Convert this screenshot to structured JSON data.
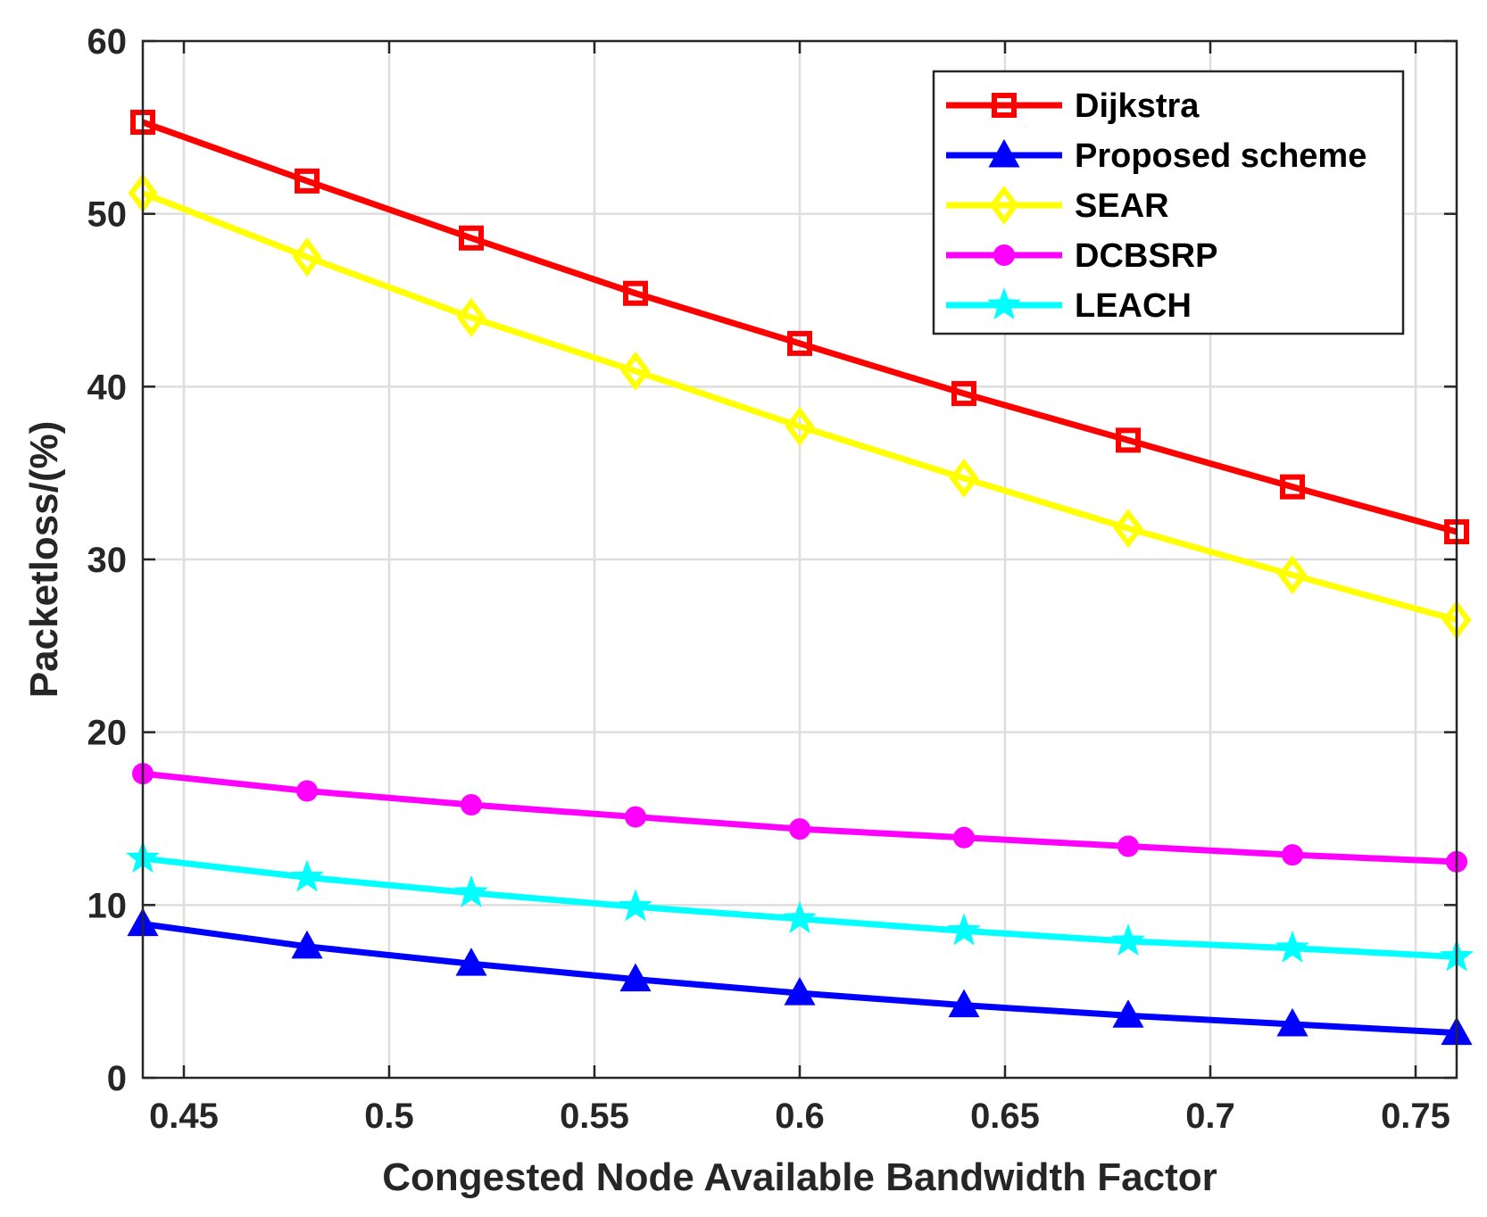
{
  "chart_data": {
    "type": "line",
    "title": "",
    "xlabel": "Congested Node Available Bandwidth Factor",
    "ylabel": "Packetloss/(%)",
    "xlim": [
      0.44,
      0.76
    ],
    "ylim": [
      0,
      60
    ],
    "xticks": [
      0.45,
      0.5,
      0.55,
      0.6,
      0.65,
      0.7,
      0.75
    ],
    "xtick_labels": [
      "0.45",
      "0.5",
      "0.55",
      "0.6",
      "0.65",
      "0.7",
      "0.75"
    ],
    "yticks": [
      0,
      10,
      20,
      30,
      40,
      50,
      60
    ],
    "ytick_labels": [
      "0",
      "10",
      "20",
      "30",
      "40",
      "50",
      "60"
    ],
    "grid": true,
    "legend_position": "top-right",
    "x": [
      0.44,
      0.48,
      0.52,
      0.56,
      0.6,
      0.64,
      0.68,
      0.72,
      0.76
    ],
    "series": [
      {
        "name": "Dijkstra",
        "color": "#ff0000",
        "marker": "square",
        "values": [
          55.3,
          51.9,
          48.6,
          45.4,
          42.5,
          39.6,
          36.9,
          34.2,
          31.6
        ]
      },
      {
        "name": "Proposed scheme",
        "color": "#0000ff",
        "marker": "triangle",
        "values": [
          8.9,
          7.6,
          6.6,
          5.7,
          4.9,
          4.2,
          3.6,
          3.1,
          2.6
        ]
      },
      {
        "name": "SEAR",
        "color": "#ffff00",
        "marker": "diamond",
        "values": [
          51.2,
          47.5,
          44.0,
          40.9,
          37.7,
          34.7,
          31.8,
          29.1,
          26.5
        ]
      },
      {
        "name": "DCBSRP",
        "color": "#ff00ff",
        "marker": "circle",
        "values": [
          17.6,
          16.6,
          15.8,
          15.1,
          14.4,
          13.9,
          13.4,
          12.9,
          12.5
        ]
      },
      {
        "name": "LEACH",
        "color": "#00ffff",
        "marker": "star",
        "values": [
          12.7,
          11.6,
          10.7,
          9.9,
          9.2,
          8.5,
          7.9,
          7.5,
          7.0
        ]
      }
    ]
  }
}
